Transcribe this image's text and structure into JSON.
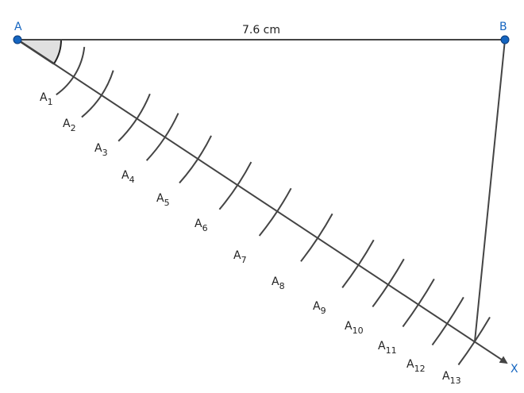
{
  "points": [
    {
      "label": "A"
    },
    {
      "label": "B"
    },
    {
      "label": "X"
    }
  ],
  "measurement": "7.6 cm",
  "divisions": [
    {
      "base": "A",
      "sub": "1"
    },
    {
      "base": "A",
      "sub": "2"
    },
    {
      "base": "A",
      "sub": "3"
    },
    {
      "base": "A",
      "sub": "4"
    },
    {
      "base": "A",
      "sub": "5"
    },
    {
      "base": "A",
      "sub": "6"
    },
    {
      "base": "A",
      "sub": "7"
    },
    {
      "base": "A",
      "sub": "8"
    },
    {
      "base": "A",
      "sub": "9"
    },
    {
      "base": "A",
      "sub": "10"
    },
    {
      "base": "A",
      "sub": "11"
    },
    {
      "base": "A",
      "sub": "12"
    },
    {
      "base": "A",
      "sub": "13"
    }
  ]
}
